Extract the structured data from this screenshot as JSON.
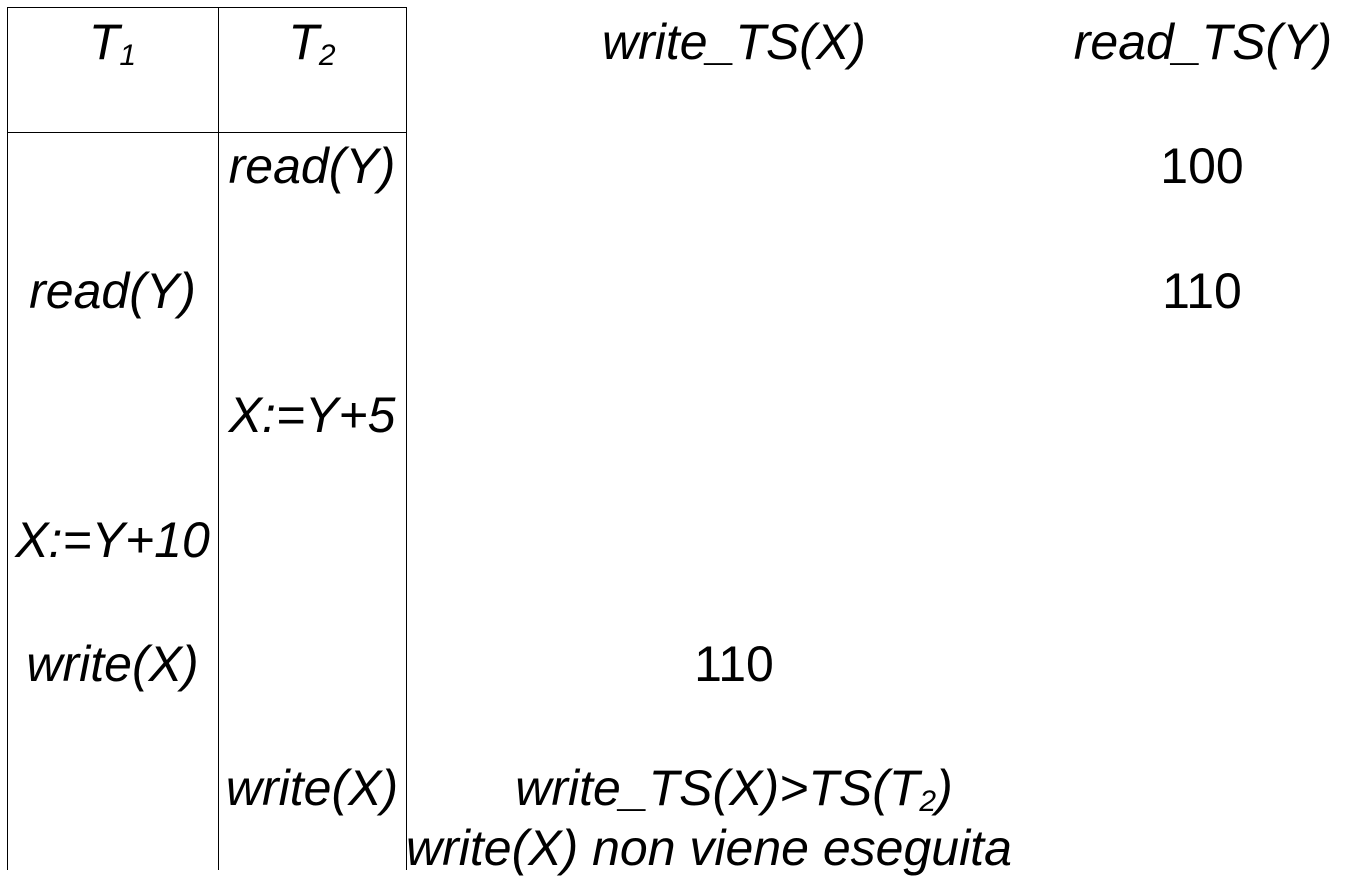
{
  "header": {
    "t1": {
      "name": "T",
      "subscript": "1"
    },
    "t2": {
      "name": "T",
      "subscript": "2"
    },
    "write_ts_x": "write_TS(X)",
    "read_ts_y": "read_TS(Y)"
  },
  "rows": [
    {
      "t1": "",
      "t2": "read(Y)",
      "write_ts": "",
      "read_ts": "100"
    },
    {
      "t1": "read(Y)",
      "t2": "",
      "write_ts": "",
      "read_ts": "110"
    },
    {
      "t1": "",
      "t2": "X:=Y+5",
      "write_ts": "",
      "read_ts": ""
    },
    {
      "t1": "X:=Y+10",
      "t2": "",
      "write_ts": "",
      "read_ts": ""
    },
    {
      "t1": "write(X)",
      "t2": "",
      "write_ts": "110",
      "read_ts": ""
    },
    {
      "t1": "",
      "t2": "write(X)",
      "write_ts": "",
      "read_ts": ""
    }
  ],
  "condition": {
    "prefix": "write_TS(X)>TS(T",
    "subscript": "2",
    "suffix": ")"
  },
  "note": "write(X) non viene eseguita"
}
